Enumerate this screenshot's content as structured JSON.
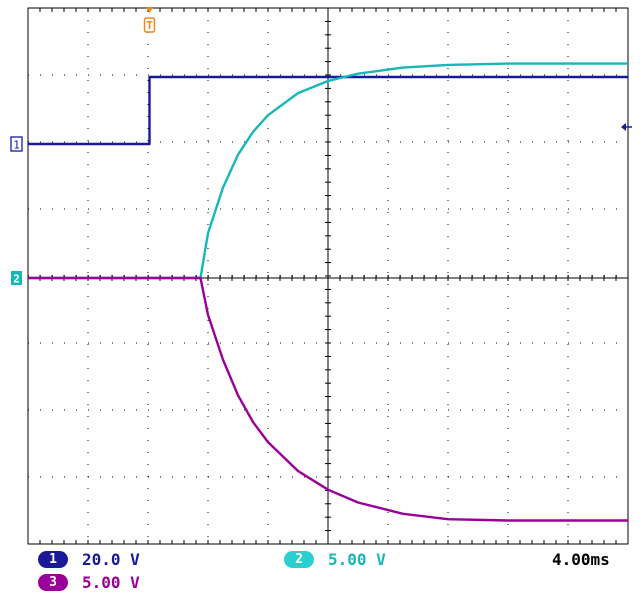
{
  "chart_data": {
    "type": "line",
    "x_unit": "ms",
    "xlim": [
      0,
      40
    ],
    "y_divisions": 8,
    "colors": {
      "ch1": "#1a1a99",
      "ch2": "#17b7b7",
      "ch3": "#990099",
      "trigger": "#e88a1e",
      "grid": "#000000"
    },
    "series": [
      {
        "channel": "1",
        "scale_label": "20.0 V",
        "color": "#1a1a99",
        "x": [
          0,
          8.1,
          8.1,
          40
        ],
        "y": [
          2,
          2,
          3,
          3
        ]
      },
      {
        "channel": "2",
        "scale_label": "5.00 V",
        "color": "#17b7b7",
        "x": [
          0,
          11.5,
          12,
          13,
          14,
          15,
          16,
          18,
          20,
          22,
          25,
          28,
          32,
          36,
          40
        ],
        "y": [
          0,
          0,
          0.67,
          1.35,
          1.84,
          2.18,
          2.43,
          2.76,
          2.94,
          3.05,
          3.14,
          3.18,
          3.2,
          3.2,
          3.2
        ]
      },
      {
        "channel": "3",
        "scale_label": "5.00 V",
        "color": "#990099",
        "x": [
          0,
          11.5,
          12,
          13,
          14,
          15,
          16,
          18,
          20,
          22,
          25,
          28,
          32,
          36,
          40
        ],
        "y": [
          0,
          0,
          -0.55,
          -1.22,
          -1.75,
          -2.15,
          -2.45,
          -2.88,
          -3.16,
          -3.35,
          -3.52,
          -3.6,
          -3.62,
          -3.62,
          -3.62
        ]
      }
    ],
    "markers": {
      "trigger_label": "T",
      "ch1_ground": "1",
      "ch2_ground": "2"
    },
    "readouts": {
      "ch1_badge": "1",
      "ch1_scale": "20.0 V",
      "ch2_badge": "2",
      "ch2_scale": "5.00 V",
      "ch3_badge": "3",
      "ch3_scale": "5.00 V",
      "timebase": "4.00ms"
    }
  }
}
